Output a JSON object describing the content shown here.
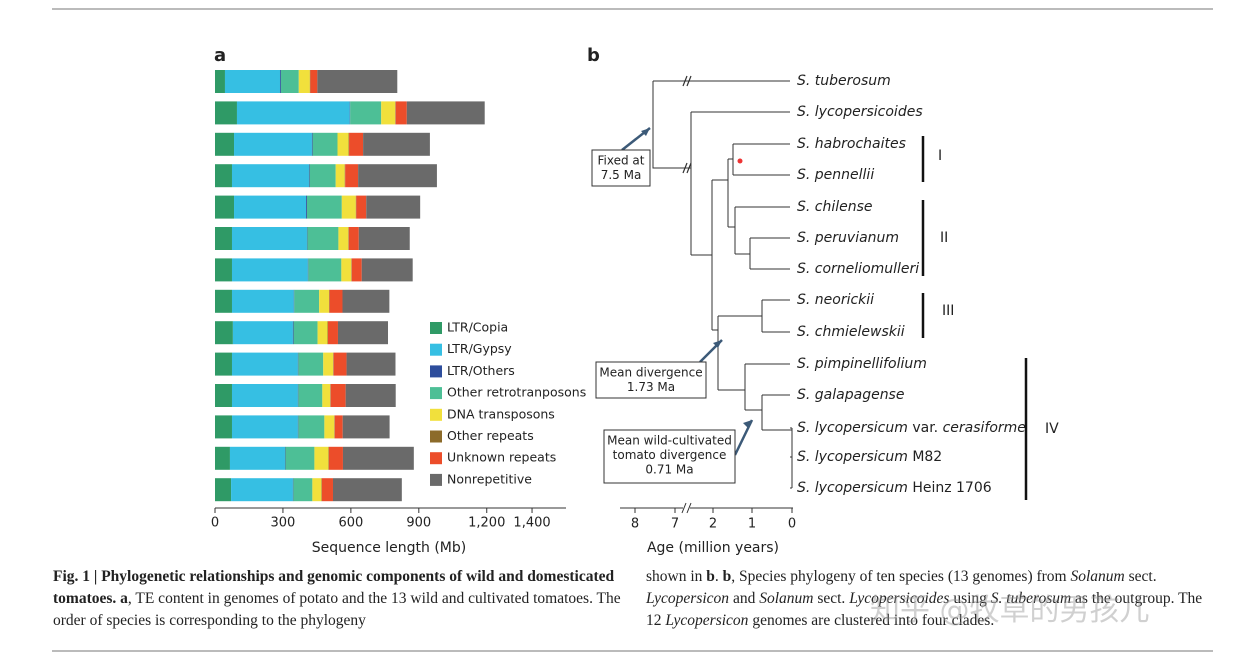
{
  "chart_data": {
    "type": "stacked-barh",
    "panel_label": "a",
    "xlabel": "Sequence length (Mb)",
    "xlim": [
      0,
      1550
    ],
    "xticks": [
      0,
      300,
      600,
      900,
      {
        "value": 1200,
        "label": "1,200"
      },
      {
        "value": 1400,
        "label": "1,400"
      }
    ],
    "series": [
      {
        "name": "LTR/Copia",
        "color": "#2f9a66",
        "values": [
          44,
          97,
          84,
          75,
          84,
          75,
          75,
          75,
          79,
          75,
          75,
          75,
          66,
          71
        ]
      },
      {
        "name": "LTR/Gypsy",
        "color": "#36bfe3",
        "values": [
          243,
          498,
          344,
          340,
          318,
          331,
          335,
          273,
          265,
          291,
          291,
          291,
          243,
          273
        ]
      },
      {
        "name": "LTR/Others",
        "color": "#2d4d9c",
        "values": [
          4,
          2,
          3,
          3,
          4,
          2,
          2,
          2,
          3,
          2,
          2,
          2,
          2,
          2
        ]
      },
      {
        "name": "Other retrotranposons",
        "color": "#4dbf96",
        "values": [
          79,
          137,
          110,
          115,
          154,
          137,
          146,
          110,
          106,
          110,
          106,
          115,
          128,
          84
        ]
      },
      {
        "name": "DNA transposons",
        "color": "#f1e03c",
        "values": [
          49,
          62,
          49,
          40,
          62,
          44,
          44,
          44,
          44,
          44,
          35,
          44,
          62,
          40
        ]
      },
      {
        "name": "Other repeats",
        "color": "#8c6b2a",
        "values": [
          2,
          2,
          2,
          2,
          2,
          2,
          2,
          2,
          2,
          2,
          2,
          2,
          2,
          2
        ]
      },
      {
        "name": "Unknown repeats",
        "color": "#ec4d2a",
        "values": [
          31,
          49,
          62,
          57,
          44,
          44,
          44,
          57,
          44,
          57,
          66,
          35,
          62,
          49
        ]
      },
      {
        "name": "Nonrepetitive",
        "color": "#6a6a6a",
        "values": [
          353,
          344,
          295,
          348,
          238,
          225,
          225,
          207,
          221,
          216,
          221,
          207,
          313,
          304
        ]
      }
    ]
  },
  "panel_b": {
    "panel_label": "b",
    "species": [
      [
        "S. tuberosum"
      ],
      [
        "S. lycopersicoides"
      ],
      [
        "S. habrochaites"
      ],
      [
        "S. pennellii"
      ],
      [
        "S. chilense"
      ],
      [
        "S. peruvianum"
      ],
      [
        "S. corneliomulleri"
      ],
      [
        "S. neorickii"
      ],
      [
        "S. chmielewskii"
      ],
      [
        "S. pimpinellifolium"
      ],
      [
        "S. galapagense"
      ],
      [
        "S. lycopersicum",
        " var. ",
        "cerasiforme"
      ],
      [
        "S. lycopersicum",
        " M82"
      ],
      [
        "S. lycopersicum",
        " Heinz 1706"
      ]
    ],
    "clades": [
      "I",
      "II",
      "III",
      "IV"
    ],
    "annotations": [
      {
        "lines": [
          "Fixed at",
          "7.5 Ma"
        ]
      },
      {
        "lines": [
          "Mean divergence",
          "1.73 Ma"
        ]
      },
      {
        "lines": [
          "Mean wild-cultivated",
          "tomato divergence",
          "0.71 Ma"
        ]
      }
    ],
    "axis_ticks": [
      8,
      7,
      2,
      1,
      0
    ],
    "axis_label": "Age (million years)"
  },
  "caption": {
    "left": [
      {
        "text": "Fig. 1 | Phylogenetic relationships and genomic components of wild and domesticated tomatoes. a",
        "style": "bold"
      },
      {
        "text": ", TE content in genomes of potato and the 13 wild and cultivated tomatoes. The order of species is corresponding to the phylogeny",
        "style": "normal"
      }
    ],
    "right": [
      {
        "text": "shown in ",
        "style": "normal"
      },
      {
        "text": "b",
        "style": "bold"
      },
      {
        "text": ". ",
        "style": "normal"
      },
      {
        "text": "b",
        "style": "bold"
      },
      {
        "text": ", Species phylogeny of ten species (13 genomes) from ",
        "style": "normal"
      },
      {
        "text": "Solanum",
        "style": "italic"
      },
      {
        "text": " sect. ",
        "style": "normal"
      },
      {
        "text": "Lycopersicon",
        "style": "italic"
      },
      {
        "text": " and ",
        "style": "normal"
      },
      {
        "text": "Solanum",
        "style": "italic"
      },
      {
        "text": " sect. ",
        "style": "normal"
      },
      {
        "text": "Lycopersicoides",
        "style": "italic"
      },
      {
        "text": " using ",
        "style": "normal"
      },
      {
        "text": "S. tuberosum",
        "style": "italic"
      },
      {
        "text": " as the outgroup. The 12 ",
        "style": "normal"
      },
      {
        "text": "Lycopersicon",
        "style": "italic"
      },
      {
        "text": " genomes are clustered into four clades.",
        "style": "normal"
      }
    ]
  },
  "watermark": "知乎 @牧草的男孩儿"
}
